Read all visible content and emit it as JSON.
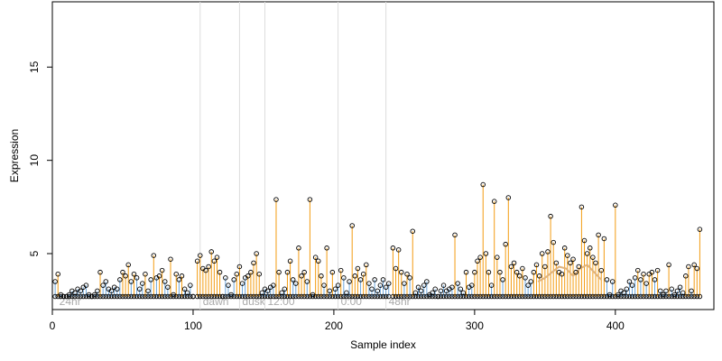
{
  "chart_data": {
    "type": "scatter",
    "xlabel": "Sample index",
    "ylabel": "Expression",
    "xlim": [
      0,
      470
    ],
    "ylim": [
      2.0,
      18.5
    ],
    "x_ticks": [
      0,
      100,
      200,
      300,
      400
    ],
    "y_ticks": [
      5,
      10,
      15
    ],
    "grid": false,
    "baseline": 2.7,
    "colors": {
      "point_stroke": "#000000",
      "high_segment": "#f39c12",
      "low_segment": "#6fa8dc",
      "trend_line": "#e0b27a",
      "annotation_line": "#dddddd",
      "annotation_text": "#aaaaaa"
    },
    "annotations": [
      {
        "x": 3,
        "label": "24hr"
      },
      {
        "x": 105,
        "label": "dawn"
      },
      {
        "x": 133,
        "label": "dusk"
      },
      {
        "x": 151,
        "label": "12:00"
      },
      {
        "x": 203,
        "label": "0:00"
      },
      {
        "x": 237,
        "label": "48hr"
      }
    ],
    "trend_points": [
      [
        345,
        3.5
      ],
      [
        350,
        3.7
      ],
      [
        355,
        4.0
      ],
      [
        360,
        4.3
      ],
      [
        365,
        4.2
      ],
      [
        370,
        3.8
      ],
      [
        375,
        4.2
      ],
      [
        380,
        4.4
      ],
      [
        385,
        4.0
      ],
      [
        390,
        3.6
      ]
    ],
    "points": [
      [
        2,
        3.5
      ],
      [
        4,
        3.9
      ],
      [
        6,
        2.8
      ],
      [
        8,
        2.7
      ],
      [
        10,
        2.7
      ],
      [
        12,
        2.8
      ],
      [
        14,
        3.0
      ],
      [
        16,
        2.9
      ],
      [
        18,
        3.1
      ],
      [
        20,
        3.0
      ],
      [
        22,
        3.2
      ],
      [
        24,
        3.3
      ],
      [
        26,
        2.8
      ],
      [
        28,
        2.7
      ],
      [
        30,
        2.8
      ],
      [
        32,
        3.0
      ],
      [
        34,
        4.0
      ],
      [
        36,
        3.3
      ],
      [
        38,
        3.5
      ],
      [
        40,
        3.1
      ],
      [
        42,
        3.0
      ],
      [
        44,
        3.2
      ],
      [
        46,
        3.1
      ],
      [
        48,
        3.6
      ],
      [
        50,
        4.0
      ],
      [
        52,
        3.8
      ],
      [
        54,
        4.4
      ],
      [
        56,
        3.5
      ],
      [
        58,
        3.9
      ],
      [
        60,
        3.7
      ],
      [
        62,
        3.1
      ],
      [
        64,
        3.4
      ],
      [
        66,
        3.9
      ],
      [
        68,
        3.0
      ],
      [
        70,
        3.6
      ],
      [
        72,
        4.9
      ],
      [
        74,
        3.7
      ],
      [
        76,
        3.8
      ],
      [
        78,
        4.1
      ],
      [
        80,
        3.5
      ],
      [
        82,
        3.2
      ],
      [
        84,
        4.7
      ],
      [
        86,
        2.8
      ],
      [
        88,
        3.9
      ],
      [
        90,
        3.6
      ],
      [
        92,
        3.8
      ],
      [
        94,
        3.1
      ],
      [
        96,
        2.9
      ],
      [
        98,
        3.3
      ],
      [
        100,
        2.7
      ],
      [
        103,
        4.6
      ],
      [
        105,
        4.9
      ],
      [
        107,
        4.2
      ],
      [
        109,
        4.1
      ],
      [
        111,
        4.3
      ],
      [
        113,
        5.1
      ],
      [
        115,
        4.6
      ],
      [
        117,
        4.8
      ],
      [
        119,
        4.0
      ],
      [
        121,
        2.7
      ],
      [
        123,
        3.7
      ],
      [
        125,
        3.3
      ],
      [
        127,
        2.8
      ],
      [
        129,
        3.6
      ],
      [
        131,
        3.9
      ],
      [
        133,
        4.3
      ],
      [
        135,
        3.4
      ],
      [
        137,
        3.7
      ],
      [
        139,
        3.8
      ],
      [
        141,
        4.0
      ],
      [
        143,
        4.5
      ],
      [
        145,
        5.0
      ],
      [
        147,
        3.9
      ],
      [
        149,
        2.9
      ],
      [
        151,
        3.1
      ],
      [
        153,
        3.0
      ],
      [
        155,
        3.2
      ],
      [
        157,
        3.3
      ],
      [
        159,
        7.9
      ],
      [
        161,
        4.0
      ],
      [
        163,
        2.9
      ],
      [
        165,
        3.1
      ],
      [
        167,
        4.0
      ],
      [
        169,
        4.6
      ],
      [
        171,
        3.6
      ],
      [
        173,
        3.4
      ],
      [
        175,
        5.3
      ],
      [
        177,
        3.8
      ],
      [
        179,
        4.0
      ],
      [
        181,
        3.5
      ],
      [
        183,
        7.9
      ],
      [
        185,
        2.8
      ],
      [
        187,
        4.8
      ],
      [
        189,
        4.6
      ],
      [
        191,
        3.8
      ],
      [
        193,
        3.3
      ],
      [
        195,
        5.3
      ],
      [
        197,
        3.0
      ],
      [
        199,
        4.0
      ],
      [
        201,
        3.1
      ],
      [
        203,
        3.3
      ],
      [
        205,
        4.1
      ],
      [
        207,
        3.7
      ],
      [
        209,
        2.9
      ],
      [
        211,
        3.5
      ],
      [
        213,
        6.5
      ],
      [
        215,
        3.8
      ],
      [
        217,
        4.2
      ],
      [
        219,
        3.6
      ],
      [
        221,
        3.9
      ],
      [
        223,
        4.4
      ],
      [
        225,
        3.4
      ],
      [
        227,
        3.1
      ],
      [
        229,
        3.6
      ],
      [
        231,
        3.0
      ],
      [
        233,
        3.3
      ],
      [
        235,
        3.6
      ],
      [
        237,
        3.2
      ],
      [
        239,
        3.4
      ],
      [
        242,
        5.3
      ],
      [
        244,
        4.2
      ],
      [
        246,
        5.2
      ],
      [
        248,
        4.0
      ],
      [
        250,
        3.4
      ],
      [
        252,
        3.9
      ],
      [
        254,
        3.7
      ],
      [
        256,
        6.2
      ],
      [
        258,
        2.9
      ],
      [
        260,
        3.2
      ],
      [
        262,
        3.0
      ],
      [
        264,
        3.3
      ],
      [
        266,
        3.5
      ],
      [
        268,
        2.8
      ],
      [
        270,
        2.9
      ],
      [
        272,
        3.1
      ],
      [
        274,
        2.7
      ],
      [
        276,
        3.0
      ],
      [
        278,
        3.3
      ],
      [
        280,
        3.0
      ],
      [
        282,
        3.1
      ],
      [
        284,
        3.2
      ],
      [
        286,
        6.0
      ],
      [
        288,
        3.4
      ],
      [
        290,
        3.1
      ],
      [
        292,
        2.9
      ],
      [
        294,
        4.0
      ],
      [
        296,
        3.2
      ],
      [
        298,
        3.3
      ],
      [
        300,
        4.0
      ],
      [
        302,
        4.6
      ],
      [
        304,
        4.8
      ],
      [
        306,
        8.7
      ],
      [
        308,
        5.0
      ],
      [
        310,
        4.0
      ],
      [
        312,
        3.3
      ],
      [
        314,
        7.8
      ],
      [
        316,
        4.8
      ],
      [
        318,
        4.0
      ],
      [
        320,
        3.6
      ],
      [
        322,
        5.5
      ],
      [
        324,
        8.0
      ],
      [
        326,
        4.3
      ],
      [
        328,
        4.5
      ],
      [
        330,
        4.0
      ],
      [
        332,
        3.8
      ],
      [
        334,
        4.2
      ],
      [
        336,
        3.7
      ],
      [
        338,
        3.3
      ],
      [
        340,
        3.5
      ],
      [
        342,
        4.0
      ],
      [
        344,
        4.4
      ],
      [
        346,
        3.8
      ],
      [
        348,
        5.0
      ],
      [
        350,
        4.3
      ],
      [
        352,
        5.1
      ],
      [
        354,
        7.0
      ],
      [
        356,
        5.6
      ],
      [
        358,
        4.5
      ],
      [
        360,
        4.0
      ],
      [
        362,
        3.9
      ],
      [
        364,
        5.3
      ],
      [
        366,
        4.9
      ],
      [
        368,
        4.5
      ],
      [
        370,
        4.7
      ],
      [
        372,
        4.0
      ],
      [
        374,
        4.3
      ],
      [
        376,
        7.5
      ],
      [
        378,
        5.7
      ],
      [
        380,
        5.0
      ],
      [
        382,
        5.3
      ],
      [
        384,
        4.8
      ],
      [
        386,
        4.5
      ],
      [
        388,
        6.0
      ],
      [
        390,
        4.1
      ],
      [
        392,
        5.8
      ],
      [
        394,
        3.6
      ],
      [
        396,
        2.8
      ],
      [
        398,
        3.5
      ],
      [
        400,
        7.6
      ],
      [
        402,
        2.8
      ],
      [
        404,
        3.0
      ],
      [
        406,
        2.9
      ],
      [
        408,
        3.1
      ],
      [
        410,
        3.5
      ],
      [
        412,
        3.3
      ],
      [
        414,
        3.7
      ],
      [
        416,
        4.1
      ],
      [
        418,
        3.6
      ],
      [
        420,
        3.9
      ],
      [
        422,
        3.4
      ],
      [
        424,
        3.9
      ],
      [
        426,
        4.0
      ],
      [
        428,
        3.6
      ],
      [
        430,
        4.1
      ],
      [
        432,
        3.0
      ],
      [
        434,
        2.8
      ],
      [
        436,
        3.0
      ],
      [
        438,
        4.4
      ],
      [
        440,
        3.1
      ],
      [
        442,
        2.8
      ],
      [
        444,
        3.0
      ],
      [
        446,
        3.2
      ],
      [
        448,
        2.9
      ],
      [
        450,
        3.8
      ],
      [
        452,
        4.3
      ],
      [
        454,
        3.0
      ],
      [
        456,
        4.4
      ],
      [
        458,
        4.2
      ],
      [
        460,
        6.3
      ]
    ]
  }
}
